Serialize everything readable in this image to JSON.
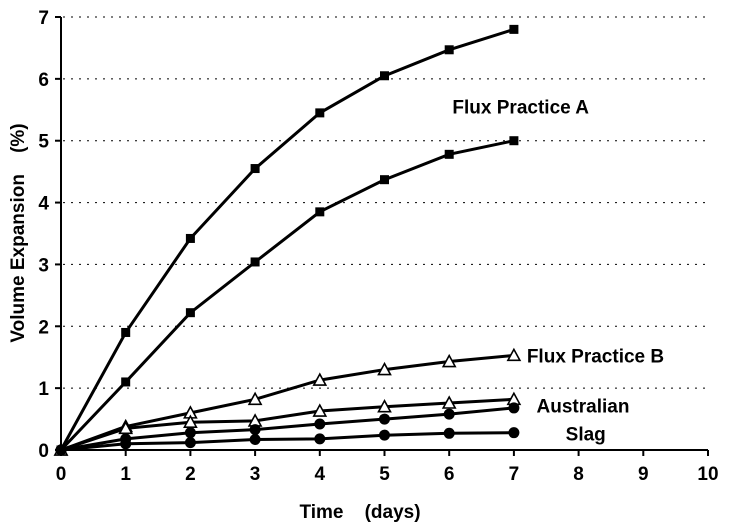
{
  "chart_data": {
    "type": "line",
    "title": "",
    "xlabel": "Time    (days)",
    "ylabel": "Volume Expansion    (%)",
    "xlim": [
      0,
      10
    ],
    "ylim": [
      0,
      7
    ],
    "xticks": [
      "0",
      "1",
      "2",
      "3",
      "4",
      "5",
      "6",
      "7",
      "8",
      "9",
      "10"
    ],
    "yticks": [
      "0",
      "1",
      "2",
      "3",
      "4",
      "5",
      "6",
      "7"
    ],
    "grid": "horizontal-dotted",
    "annotations": [
      {
        "text": "Flux Practice A",
        "x": 6.05,
        "y": 5.55
      },
      {
        "text": "Flux Practice B",
        "x": 7.2,
        "y": 1.53
      },
      {
        "text": "Australian",
        "x": 7.35,
        "y": 0.72
      },
      {
        "text": "Slag",
        "x": 7.8,
        "y": 0.27
      }
    ],
    "series": [
      {
        "marker": "square",
        "x": [
          0,
          1,
          2,
          3,
          4,
          5,
          6,
          7
        ],
        "y": [
          0,
          1.9,
          3.42,
          4.55,
          5.45,
          6.05,
          6.47,
          6.8
        ]
      },
      {
        "marker": "square",
        "x": [
          0,
          1,
          2,
          3,
          4,
          5,
          6,
          7
        ],
        "y": [
          0,
          1.1,
          2.22,
          3.04,
          3.85,
          4.37,
          4.78,
          5.0
        ]
      },
      {
        "marker": "triangle",
        "x": [
          0,
          1,
          2,
          3,
          4,
          5,
          6,
          7
        ],
        "y": [
          0,
          0.38,
          0.6,
          0.82,
          1.13,
          1.3,
          1.43,
          1.53
        ]
      },
      {
        "marker": "triangle",
        "x": [
          0,
          1,
          2,
          3,
          4,
          5,
          6,
          7
        ],
        "y": [
          0,
          0.35,
          0.45,
          0.47,
          0.63,
          0.7,
          0.76,
          0.82
        ]
      },
      {
        "marker": "circle",
        "x": [
          0,
          1,
          2,
          3,
          4,
          5,
          6,
          7
        ],
        "y": [
          0,
          0.18,
          0.28,
          0.33,
          0.42,
          0.5,
          0.58,
          0.68
        ]
      },
      {
        "marker": "circle",
        "x": [
          0,
          1,
          2,
          3,
          4,
          5,
          6,
          7
        ],
        "y": [
          0,
          0.1,
          0.12,
          0.17,
          0.18,
          0.24,
          0.27,
          0.28
        ]
      }
    ]
  }
}
